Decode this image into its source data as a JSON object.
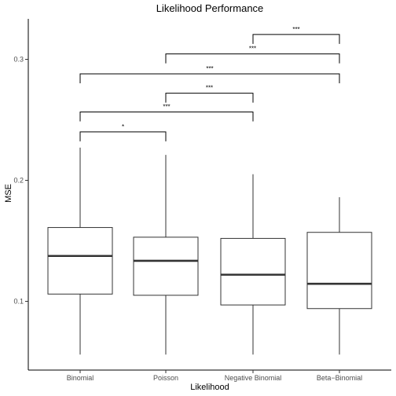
{
  "chart_data": {
    "type": "box",
    "title": "Likelihood Performance",
    "xlabel": "Likelihood",
    "ylabel": "MSE",
    "ylim": [
      0.045,
      0.335
    ],
    "yticks": [
      0.1,
      0.2,
      0.3
    ],
    "ytick_labels": [
      "0.1",
      "0.2",
      "0.3"
    ],
    "grid": false,
    "categories": [
      "Binomial",
      "Poisson",
      "Negative Binomial",
      "Beta−Binomial"
    ],
    "boxes": [
      {
        "category": "Binomial",
        "min": 0.056,
        "q1": 0.106,
        "median": 0.1375,
        "q3": 0.161,
        "max": 0.227
      },
      {
        "category": "Poisson",
        "min": 0.056,
        "q1": 0.105,
        "median": 0.1335,
        "q3": 0.153,
        "max": 0.221
      },
      {
        "category": "Negative Binomial",
        "min": 0.056,
        "q1": 0.097,
        "median": 0.122,
        "q3": 0.152,
        "max": 0.205
      },
      {
        "category": "Beta−Binomial",
        "min": 0.056,
        "q1": 0.094,
        "median": 0.1145,
        "q3": 0.157,
        "max": 0.186
      }
    ],
    "significance": [
      {
        "from": 0,
        "to": 1,
        "y": 0.24,
        "label": "*"
      },
      {
        "from": 0,
        "to": 2,
        "y": 0.2565,
        "label": "***"
      },
      {
        "from": 1,
        "to": 2,
        "y": 0.272,
        "label": "***"
      },
      {
        "from": 0,
        "to": 3,
        "y": 0.288,
        "label": "***"
      },
      {
        "from": 1,
        "to": 3,
        "y": 0.3045,
        "label": "***"
      },
      {
        "from": 2,
        "to": 3,
        "y": 0.3205,
        "label": "***"
      }
    ]
  }
}
